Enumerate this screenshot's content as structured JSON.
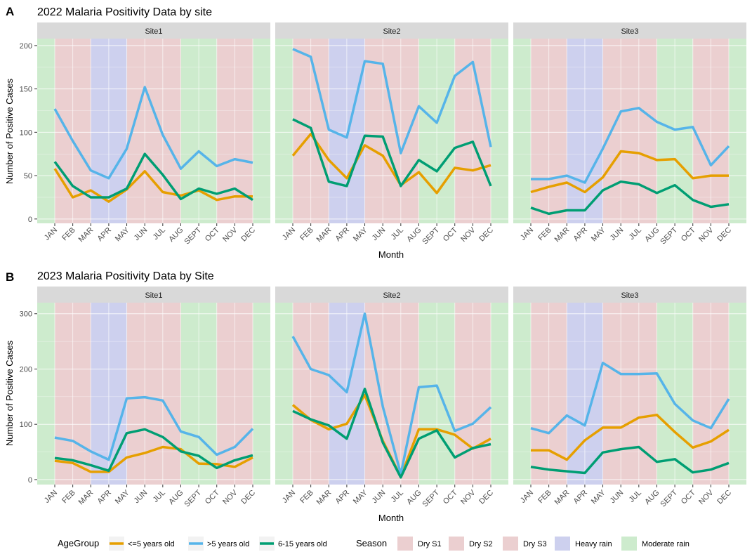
{
  "colors": {
    "season": {
      "Dry S1": "#ebcfd0",
      "Dry S2": "#ebcfd0",
      "Dry S3": "#ebcfd0",
      "Heavy rain": "#cdd0ee",
      "Moderate rain": "#cdebcd"
    },
    "agegroup": {
      "<=5 years old": "#e69f00",
      ">5 years old": "#56b4e9",
      "6-15 years old": "#009e73"
    },
    "strip": "#d9d9d9"
  },
  "chart_data": [
    {
      "type": "line",
      "tag": "A",
      "title": "2022 Malaria Positivity Data by site",
      "xlabel": "Month",
      "ylabel": "Number of Positive Cases",
      "ylim": [
        -5,
        208
      ],
      "yticks": [
        0,
        50,
        100,
        150,
        200
      ],
      "categories": [
        "JAN",
        "FEB",
        "MAR",
        "APR",
        "MAY",
        "JUN",
        "JUL",
        "AUG",
        "SEPT",
        "OCT",
        "NOV",
        "DEC"
      ],
      "season_bands": [
        "Moderate rain",
        "Dry S1",
        "Dry S1",
        "Heavy rain",
        "Heavy rain",
        "Dry S2",
        "Dry S2",
        "Dry S2",
        "Moderate rain",
        "Moderate rain",
        "Dry S3",
        "Dry S3",
        "Moderate rain"
      ],
      "panels": [
        {
          "strip": "Site1",
          "series": [
            {
              "name": "<=5 years old",
              "values": [
                58,
                25,
                33,
                20,
                34,
                55,
                31,
                27,
                33,
                22,
                26,
                26
              ]
            },
            {
              "name": ">5 years old",
              "values": [
                127,
                90,
                56,
                47,
                81,
                152,
                97,
                58,
                78,
                61,
                69,
                65
              ]
            },
            {
              "name": "6-15 years old",
              "values": [
                66,
                38,
                25,
                25,
                35,
                75,
                51,
                23,
                35,
                29,
                35,
                22
              ]
            }
          ]
        },
        {
          "strip": "Site2",
          "series": [
            {
              "name": "<=5 years old",
              "values": [
                73,
                98,
                68,
                47,
                85,
                73,
                39,
                54,
                30,
                59,
                56,
                62
              ]
            },
            {
              "name": ">5 years old",
              "values": [
                196,
                187,
                103,
                94,
                182,
                179,
                76,
                130,
                111,
                165,
                181,
                83
              ]
            },
            {
              "name": "6-15 years old",
              "values": [
                115,
                105,
                43,
                38,
                96,
                95,
                38,
                68,
                55,
                82,
                89,
                38
              ]
            }
          ]
        },
        {
          "strip": "Site3",
          "series": [
            {
              "name": "<=5 years old",
              "values": [
                31,
                37,
                42,
                31,
                48,
                78,
                76,
                68,
                69,
                47,
                50,
                50
              ]
            },
            {
              "name": ">5 years old",
              "values": [
                46,
                46,
                50,
                42,
                81,
                124,
                128,
                112,
                103,
                106,
                62,
                84
              ]
            },
            {
              "name": "6-15 years old",
              "values": [
                13,
                6,
                10,
                10,
                33,
                43,
                40,
                30,
                39,
                22,
                14,
                17
              ]
            }
          ]
        }
      ]
    },
    {
      "type": "line",
      "tag": "B",
      "title": "2023 Malaria Positivity Data by Site",
      "xlabel": "Month",
      "ylabel": "Number of Positive Cases",
      "ylim": [
        -9,
        320
      ],
      "yticks": [
        0,
        100,
        200,
        300
      ],
      "categories": [
        "JAN",
        "FEB",
        "MAR",
        "APR",
        "MAY",
        "JUN",
        "JUL",
        "AUG",
        "SEPT",
        "OCT",
        "NOV",
        "DEC"
      ],
      "season_bands": [
        "Moderate rain",
        "Dry S1",
        "Dry S1",
        "Heavy rain",
        "Heavy rain",
        "Dry S2",
        "Dry S2",
        "Dry S2",
        "Moderate rain",
        "Moderate rain",
        "Dry S3",
        "Dry S3",
        "Moderate rain"
      ],
      "panels": [
        {
          "strip": "Site1",
          "series": [
            {
              "name": "<=5 years old",
              "values": [
                34,
                30,
                14,
                14,
                40,
                48,
                59,
                55,
                29,
                28,
                23,
                40
              ]
            },
            {
              "name": ">5 years old",
              "values": [
                76,
                70,
                51,
                36,
                147,
                149,
                143,
                87,
                77,
                45,
                59,
                92
              ]
            },
            {
              "name": "6-15 years old",
              "values": [
                39,
                35,
                26,
                16,
                84,
                91,
                77,
                51,
                43,
                21,
                35,
                44
              ]
            }
          ]
        },
        {
          "strip": "Site2",
          "series": [
            {
              "name": "<=5 years old",
              "values": [
                135,
                108,
                91,
                101,
                153,
                70,
                5,
                91,
                91,
                81,
                56,
                74
              ]
            },
            {
              "name": ">5 years old",
              "values": [
                259,
                200,
                189,
                158,
                300,
                132,
                10,
                167,
                170,
                88,
                101,
                131
              ]
            },
            {
              "name": "6-15 years old",
              "values": [
                124,
                109,
                98,
                74,
                164,
                67,
                4,
                74,
                89,
                40,
                57,
                64
              ]
            }
          ]
        },
        {
          "strip": "Site3",
          "series": [
            {
              "name": "<=5 years old",
              "values": [
                53,
                53,
                36,
                71,
                94,
                94,
                112,
                117,
                86,
                58,
                69,
                90
              ]
            },
            {
              "name": ">5 years old",
              "values": [
                93,
                84,
                116,
                98,
                211,
                191,
                191,
                192,
                137,
                107,
                93,
                146
              ]
            },
            {
              "name": "6-15 years old",
              "values": [
                23,
                18,
                15,
                12,
                49,
                55,
                59,
                32,
                37,
                13,
                18,
                30
              ]
            }
          ]
        }
      ]
    }
  ],
  "legend": {
    "agegroup_title": "AgeGroup",
    "agegroup_items": [
      "<=5 years old",
      ">5 years old",
      "6-15 years old"
    ],
    "season_title": "Season",
    "season_items": [
      "Dry S1",
      "Dry S2",
      "Dry S3",
      "Heavy rain",
      "Moderate rain"
    ]
  }
}
